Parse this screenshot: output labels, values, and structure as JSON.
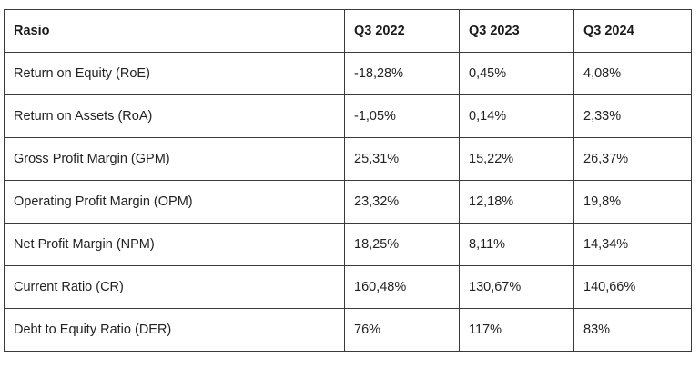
{
  "table": {
    "headers": [
      "Rasio",
      "Q3 2022",
      "Q3 2023",
      "Q3 2024"
    ],
    "rows": [
      [
        "Return on Equity (RoE)",
        "-18,28%",
        "0,45%",
        "4,08%"
      ],
      [
        "Return on Assets (RoA)",
        "-1,05%",
        "0,14%",
        "2,33%"
      ],
      [
        "Gross Profit Margin (GPM)",
        "25,31%",
        "15,22%",
        "26,37%"
      ],
      [
        "Operating Profit Margin (OPM)",
        "23,32%",
        "12,18%",
        "19,8%"
      ],
      [
        "Net Profit Margin (NPM)",
        "18,25%",
        "8,11%",
        "14,34%"
      ],
      [
        "Current Ratio (CR)",
        "160,48%",
        "130,67%",
        "140,66%"
      ],
      [
        "Debt to Equity Ratio (DER)",
        "76%",
        "117%",
        "83%"
      ]
    ]
  }
}
